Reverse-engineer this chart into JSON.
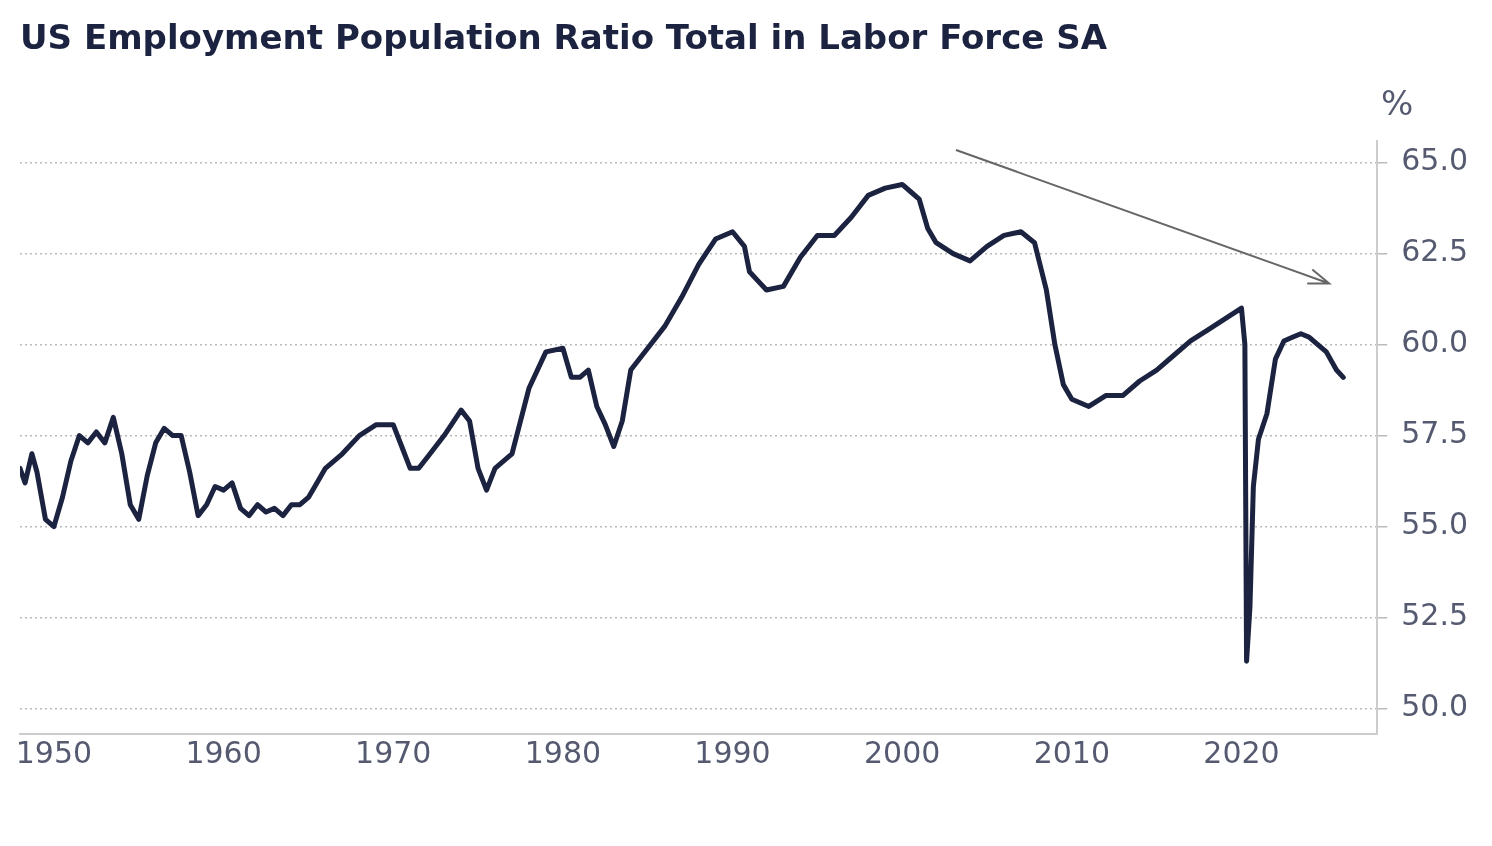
{
  "chart_data": {
    "type": "line",
    "title": "US Employment Population Ratio Total in Labor Force SA",
    "ylabel": "%",
    "x": [
      1948.0,
      1948.3,
      1948.7,
      1949.0,
      1949.5,
      1950.0,
      1950.5,
      1951.0,
      1951.5,
      1952.0,
      1952.5,
      1953.0,
      1953.5,
      1954.0,
      1954.5,
      1955.0,
      1955.5,
      1956.0,
      1956.5,
      1957.0,
      1957.5,
      1958.0,
      1958.5,
      1959.0,
      1959.5,
      1960.0,
      1960.5,
      1961.0,
      1961.5,
      1962.0,
      1962.5,
      1963.0,
      1963.5,
      1964.0,
      1964.5,
      1965.0,
      1965.5,
      1966.0,
      1967.0,
      1968.0,
      1969.0,
      1970.0,
      1970.5,
      1971.0,
      1971.5,
      1972.0,
      1973.0,
      1974.0,
      1974.5,
      1975.0,
      1975.5,
      1976.0,
      1977.0,
      1978.0,
      1979.0,
      1980.0,
      1980.5,
      1981.0,
      1981.5,
      1982.0,
      1982.5,
      1983.0,
      1983.5,
      1984.0,
      1985.0,
      1986.0,
      1987.0,
      1988.0,
      1989.0,
      1990.0,
      1990.7,
      1991.0,
      1992.0,
      1993.0,
      1994.0,
      1995.0,
      1996.0,
      1997.0,
      1998.0,
      1999.0,
      2000.0,
      2000.5,
      2001.0,
      2001.5,
      2002.0,
      2003.0,
      2004.0,
      2005.0,
      2006.0,
      2007.0,
      2007.8,
      2008.5,
      2009.0,
      2009.5,
      2010.0,
      2011.0,
      2012.0,
      2013.0,
      2014.0,
      2015.0,
      2016.0,
      2017.0,
      2018.0,
      2019.0,
      2020.0,
      2020.2,
      2020.3,
      2020.5,
      2020.7,
      2021.0,
      2021.5,
      2022.0,
      2022.5,
      2023.0,
      2023.5,
      2024.0,
      2024.5,
      2025.0,
      2025.6,
      2026.0
    ],
    "series": [
      {
        "color": "#1c2340",
        "values": [
          56.6,
          56.2,
          57.0,
          56.5,
          55.2,
          55.0,
          55.8,
          56.8,
          57.5,
          57.3,
          57.6,
          57.3,
          58.0,
          57.0,
          55.6,
          55.2,
          56.4,
          57.3,
          57.7,
          57.5,
          57.5,
          56.5,
          55.3,
          55.6,
          56.1,
          56.0,
          56.2,
          55.5,
          55.3,
          55.6,
          55.4,
          55.5,
          55.3,
          55.6,
          55.6,
          55.8,
          56.2,
          56.6,
          57.0,
          57.5,
          57.8,
          57.8,
          57.2,
          56.6,
          56.6,
          56.9,
          57.5,
          58.2,
          57.9,
          56.6,
          56.0,
          56.6,
          57.0,
          58.8,
          59.8,
          59.9,
          59.1,
          59.1,
          59.3,
          58.3,
          57.8,
          57.2,
          57.9,
          59.3,
          59.9,
          60.5,
          61.3,
          62.2,
          62.9,
          63.1,
          62.7,
          62.0,
          61.5,
          61.6,
          62.4,
          63.0,
          63.0,
          63.5,
          64.1,
          64.3,
          64.4,
          64.2,
          64.0,
          63.2,
          62.8,
          62.5,
          62.3,
          62.7,
          63.0,
          63.1,
          62.8,
          61.5,
          60.0,
          58.9,
          58.5,
          58.3,
          58.6,
          58.6,
          59.0,
          59.3,
          59.7,
          60.1,
          60.4,
          60.7,
          61.0,
          60.0,
          51.3,
          52.8,
          56.1,
          57.4,
          58.1,
          59.6,
          60.1,
          60.2,
          60.3,
          60.2,
          60.0,
          59.8,
          59.3,
          59.1
        ]
      }
    ],
    "xlim": [
      1948,
      2028
    ],
    "xticks": [
      1950,
      1960,
      1970,
      1980,
      1990,
      2000,
      2010,
      2020
    ],
    "ylim": [
      49.3,
      65.6
    ],
    "yticks": [
      {
        "value": 50,
        "label": "50.0"
      },
      {
        "value": 52.5,
        "label": "52.5"
      },
      {
        "value": 55,
        "label": "55.0"
      },
      {
        "value": 57.5,
        "label": "57.5"
      },
      {
        "value": 60,
        "label": "60.0"
      },
      {
        "value": 62.5,
        "label": "62.5"
      },
      {
        "value": 65,
        "label": "65.0"
      }
    ],
    "grid": "y",
    "legend": false,
    "marker": "none",
    "line_style": "solid"
  }
}
